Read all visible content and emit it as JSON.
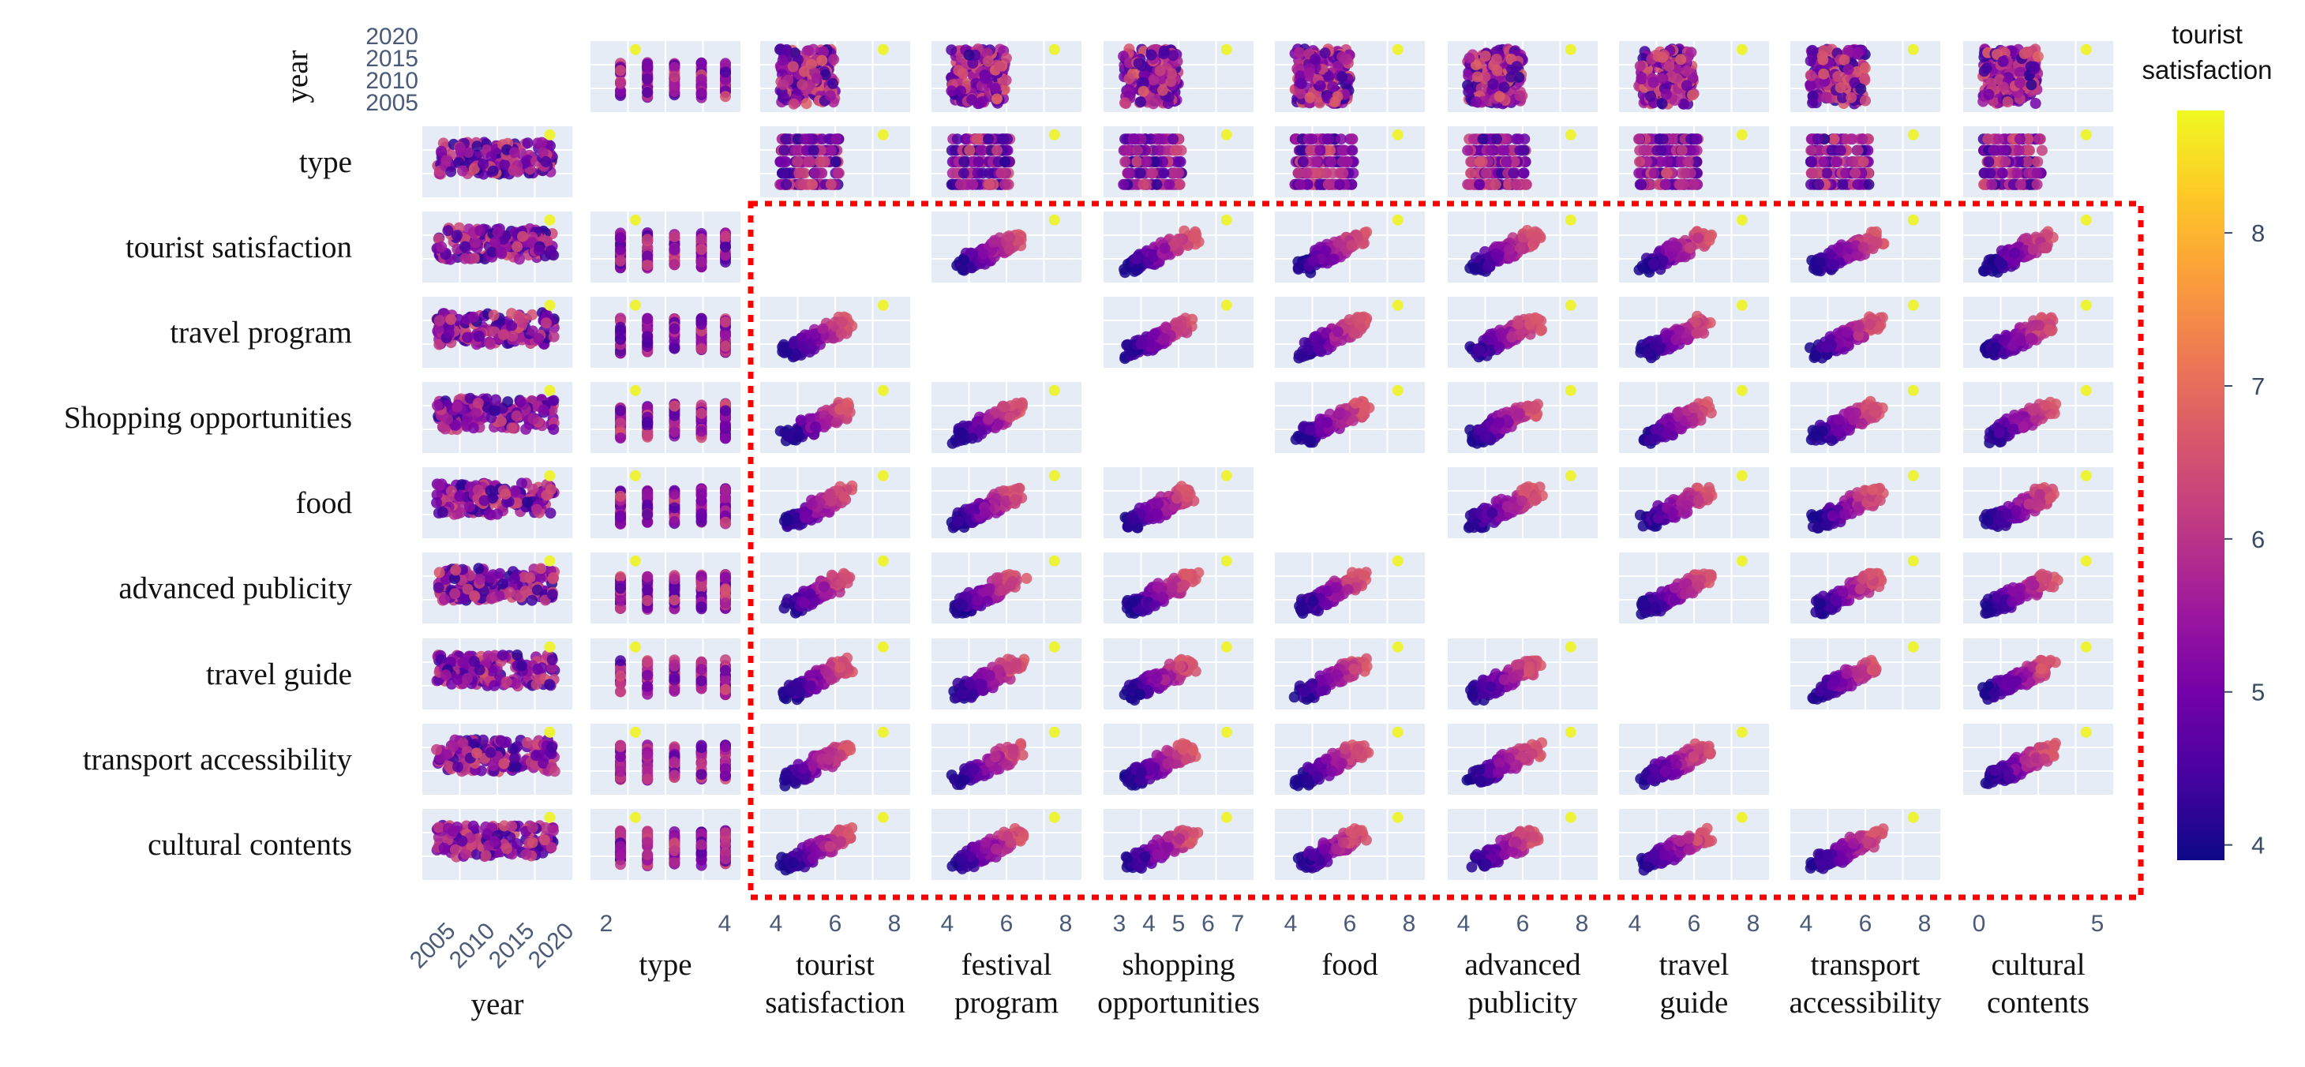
{
  "chart_data": {
    "type": "scatter",
    "subtype": "scatter-matrix",
    "variables": [
      "year",
      "type",
      "tourist satisfaction",
      "travel program",
      "Shopping opportunities",
      "food",
      "advanced publicity",
      "travel guide",
      "transport accessibility",
      "cultural contents"
    ],
    "row_labels": [
      "year",
      "type",
      "tourist satisfaction",
      "travel program",
      "Shopping opportunities",
      "food",
      "advanced publicity",
      "travel guide",
      "transport accessibility",
      "cultural contents"
    ],
    "col_labels": [
      [
        "year"
      ],
      [
        "type"
      ],
      [
        "tourist",
        "satisfaction"
      ],
      [
        "festival",
        "program"
      ],
      [
        "shopping",
        "opportunities"
      ],
      [
        "food"
      ],
      [
        "advanced",
        "publicity"
      ],
      [
        "travel",
        "guide"
      ],
      [
        "transport",
        "accessibility"
      ],
      [
        "cultural",
        "contents"
      ]
    ],
    "x_ticks": [
      [
        "2005",
        "2010",
        "2015",
        "2020"
      ],
      [
        "2",
        "4"
      ],
      [
        "4",
        "6",
        "8"
      ],
      [
        "4",
        "6",
        "8"
      ],
      [
        "3",
        "4",
        "5",
        "6",
        "7"
      ],
      [
        "4",
        "6",
        "8"
      ],
      [
        "4",
        "6",
        "8"
      ],
      [
        "4",
        "6",
        "8"
      ],
      [
        "4",
        "6",
        "8"
      ],
      [
        "0",
        "5"
      ]
    ],
    "y_ticks_year": [
      "2020",
      "2015",
      "2010",
      "2005"
    ],
    "diagonal": "empty",
    "color_variable": "tourist satisfaction",
    "colorbar": {
      "title": [
        "tourist",
        "satisfaction"
      ],
      "ticks": [
        "8",
        "7",
        "6",
        "5",
        "4"
      ],
      "range": [
        3.9,
        8.8
      ],
      "colorscale": [
        "#0d0887",
        "#46039f",
        "#7201a8",
        "#9c179e",
        "#bd3786",
        "#d8576b",
        "#ed7953",
        "#fb9f3a",
        "#fdca26",
        "#f0f921"
      ]
    },
    "highlight": {
      "style": "red dotted rectangle",
      "color": "#ff0000",
      "rows": [
        "tourist satisfaction",
        "cultural contents"
      ],
      "cols": [
        "tourist satisfaction",
        "cultural contents"
      ]
    },
    "notes": "Each off-diagonal panel shows a dense cloud of points colored by tourist satisfaction (purple to pink) plus one outlier point colored yellow in the upper-right corner."
  }
}
